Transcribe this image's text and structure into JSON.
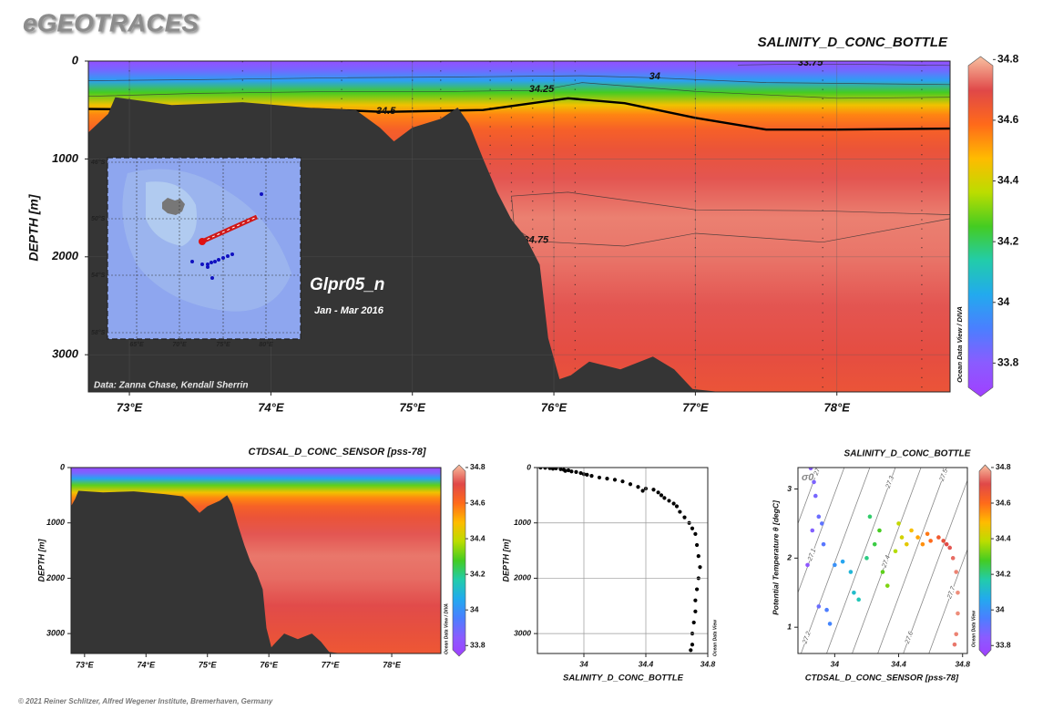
{
  "header": {
    "title": "eGEOTRACES"
  },
  "footer": {
    "copyright": "© 2021 Reiner Schlitzer, Alfred Wegener Institute, Bremerhaven, Germany"
  },
  "chart_data": [
    {
      "type": "section",
      "title": "SALINITY_D_CONC_BOTTLE",
      "y_label": "DEPTH [m]",
      "side_label": "Ocean Data View / DIVA",
      "xlim": [
        72.71,
        78.8
      ],
      "ylim": [
        0,
        3380
      ],
      "y_reversed": true,
      "grid": true,
      "xticks": [
        {
          "value": 73,
          "label": "73°E"
        },
        {
          "value": 74,
          "label": "74°E"
        },
        {
          "value": 75,
          "label": "75°E"
        },
        {
          "value": 76,
          "label": "76°E"
        },
        {
          "value": 77,
          "label": "77°E"
        },
        {
          "value": 78,
          "label": "78°E"
        }
      ],
      "yticks": [
        0,
        1000,
        2000,
        3000
      ],
      "colorbar": {
        "clim": [
          33.69,
          34.81
        ],
        "ticks": [
          33.8,
          34,
          34.2,
          34.4,
          34.6,
          34.8
        ],
        "colormap": [
          "#a040ff",
          "#8a5cff",
          "#4a7fff",
          "#22aaee",
          "#22ccaa",
          "#44cc22",
          "#bbdd00",
          "#ffbb00",
          "#ff6a1a",
          "#e04848",
          "#f8c0a0"
        ]
      },
      "profile": {
        "depth": [
          0,
          100,
          200,
          320,
          450,
          550,
          700,
          900,
          1200,
          1600,
          2000,
          2500,
          3000,
          3380
        ],
        "values": [
          33.75,
          33.85,
          34.0,
          34.25,
          34.45,
          34.55,
          34.62,
          34.66,
          34.71,
          34.75,
          34.74,
          34.71,
          34.68,
          34.66
        ]
      },
      "contours": [
        {
          "level": 33.75,
          "x": [
            77.3,
            77.8,
            78.3,
            78.8
          ],
          "depth": [
            40,
            30,
            35,
            45
          ],
          "bold": false
        },
        {
          "level": 34,
          "x": [
            72.71,
            73.5,
            74.5,
            75.5,
            76.2,
            76.7,
            77.5,
            78.8
          ],
          "depth": [
            200,
            190,
            170,
            160,
            150,
            170,
            220,
            240
          ],
          "bold": false
        },
        {
          "level": 34.25,
          "x": [
            72.71,
            73.5,
            74.5,
            75.3,
            75.9,
            76.2,
            77,
            78,
            78.8
          ],
          "depth": [
            360,
            330,
            310,
            310,
            300,
            220,
            310,
            380,
            370
          ],
          "bold": false
        },
        {
          "level": 34.5,
          "x": [
            72.71,
            73.5,
            74.3,
            74.8,
            75.5,
            75.9,
            76.1,
            76.5,
            77,
            77.5,
            78,
            78.8
          ],
          "depth": [
            490,
            500,
            490,
            520,
            500,
            420,
            380,
            430,
            580,
            700,
            700,
            690
          ],
          "bold": true
        },
        {
          "level": 34.75,
          "x": [
            78.8,
            77.9,
            77,
            76.1,
            75.7,
            75.72,
            75.86,
            76.5,
            77,
            77.9,
            78.8
          ],
          "depth": [
            1570,
            1530,
            1520,
            1340,
            1380,
            1700,
            1840,
            1890,
            1760,
            1850,
            1610
          ],
          "bold": false
        }
      ],
      "stations": [
        73.0,
        73.8,
        74.5,
        75.0,
        75.2,
        75.55,
        75.7,
        75.85,
        76.0,
        76.15,
        77.0,
        77.9,
        78.6
      ],
      "bathymetry": {
        "x": [
          72.71,
          72.85,
          72.9,
          73.3,
          73.8,
          74.3,
          74.6,
          74.77,
          74.87,
          75.0,
          75.2,
          75.32,
          75.4,
          75.5,
          75.6,
          75.7,
          75.8,
          75.9,
          75.96,
          76.04,
          76.12,
          76.25,
          76.47,
          76.7,
          76.85,
          76.98,
          77.17
        ],
        "depth": [
          730,
          540,
          370,
          450,
          420,
          480,
          500,
          680,
          820,
          680,
          590,
          475,
          640,
          1000,
          1340,
          1620,
          1800,
          2080,
          2830,
          3250,
          3210,
          3070,
          3150,
          3020,
          3150,
          3350,
          3380
        ]
      },
      "annotations": {
        "section": "Glpr05_n",
        "period": "Jan - Mar 2016",
        "credit": "Data: Zanna Chase, Kendall Sherrin"
      },
      "inset_map": {
        "lat_labels": [
          "46°S",
          "50°S",
          "54°S",
          "58°S"
        ],
        "lon_labels": [
          "65°E",
          "70°E",
          "75°E",
          "80°E"
        ]
      }
    },
    {
      "type": "section",
      "title": "CTDSAL_D_CONC_SENSOR [pss-78]",
      "y_label": "DEPTH [m]",
      "side_label": "Ocean Data View / DIVA",
      "xlim": [
        72.78,
        78.8
      ],
      "ylim": [
        0,
        3360
      ],
      "y_reversed": true,
      "grid": false,
      "xticks": [
        {
          "value": 73,
          "label": "73°E"
        },
        {
          "value": 74,
          "label": "74°E"
        },
        {
          "value": 75,
          "label": "75°E"
        },
        {
          "value": 76,
          "label": "76°E"
        },
        {
          "value": 77,
          "label": "77°E"
        },
        {
          "value": 78,
          "label": "78°E"
        }
      ],
      "yticks": [
        0,
        1000,
        2000,
        3000
      ],
      "colorbar": {
        "clim": [
          33.74,
          34.815
        ],
        "ticks": [
          33.8,
          34,
          34.2,
          34.4,
          34.6,
          34.8
        ],
        "colormap": [
          "#a040ff",
          "#8a5cff",
          "#4a7fff",
          "#22aaee",
          "#22ccaa",
          "#44cc22",
          "#bbdd00",
          "#ffbb00",
          "#ff6a1a",
          "#e04848",
          "#f8c0a0"
        ]
      },
      "profile": {
        "depth": [
          0,
          100,
          200,
          320,
          450,
          550,
          700,
          900,
          1200,
          1600,
          2000,
          2500,
          3000,
          3360
        ],
        "values": [
          33.78,
          33.88,
          34.05,
          34.3,
          34.47,
          34.56,
          34.63,
          34.67,
          34.72,
          34.75,
          34.74,
          34.71,
          34.68,
          34.66
        ]
      },
      "bathymetry": {
        "x": [
          72.78,
          72.85,
          72.9,
          73.3,
          73.8,
          74.3,
          74.6,
          74.77,
          74.87,
          75.0,
          75.2,
          75.32,
          75.4,
          75.5,
          75.6,
          75.7,
          75.8,
          75.9,
          75.96,
          76.04,
          76.12,
          76.25,
          76.47,
          76.7,
          76.85,
          76.98,
          77.17
        ],
        "depth": [
          700,
          560,
          420,
          450,
          430,
          480,
          520,
          700,
          820,
          700,
          600,
          500,
          660,
          1050,
          1400,
          1700,
          1900,
          2200,
          2900,
          3250,
          3150,
          3000,
          3100,
          3000,
          3150,
          3330,
          3360
        ]
      }
    },
    {
      "type": "scatter",
      "x_label": "SALINITY_D_CONC_BOTTLE",
      "y_label": "DEPTH [m]",
      "side_label": "Ocean Data View",
      "xlim": [
        33.7,
        34.8
      ],
      "ylim": [
        0,
        3360
      ],
      "y_reversed": true,
      "grid": true,
      "color": "#000000",
      "xticks": [
        34,
        34.4,
        34.8
      ],
      "yticks": [
        0,
        1000,
        2000,
        3000
      ],
      "x": [
        33.72,
        33.75,
        33.78,
        33.8,
        33.82,
        33.85,
        33.87,
        33.9,
        33.88,
        33.92,
        33.95,
        33.98,
        34.0,
        34.02,
        34.05,
        34.1,
        34.15,
        34.2,
        34.25,
        34.3,
        34.35,
        34.4,
        34.38,
        34.45,
        34.48,
        34.5,
        34.52,
        34.55,
        34.58,
        34.6,
        34.62,
        34.65,
        34.68,
        34.7,
        34.72,
        34.73,
        34.74,
        34.75,
        34.74,
        34.73,
        34.72,
        34.72,
        34.71,
        34.7,
        34.7,
        34.69
      ],
      "y": [
        0,
        5,
        10,
        20,
        15,
        30,
        40,
        50,
        60,
        70,
        80,
        100,
        120,
        130,
        150,
        180,
        200,
        220,
        250,
        300,
        350,
        380,
        420,
        400,
        450,
        500,
        550,
        600,
        650,
        700,
        800,
        900,
        1000,
        1100,
        1200,
        1400,
        1600,
        1800,
        2000,
        2200,
        2400,
        2600,
        2800,
        3000,
        3200,
        3300
      ]
    },
    {
      "type": "scatter",
      "title": "SALINITY_D_CONC_BOTTLE",
      "x_label": "CTDSAL_D_CONC_SENSOR [pss-78]",
      "y_label": "Potential Temperature θ [degC]",
      "side_label": "Ocean Data View",
      "xlim": [
        33.77,
        34.83
      ],
      "ylim": [
        0.62,
        3.31
      ],
      "y_reversed": false,
      "grid": false,
      "xticks": [
        34,
        34.4,
        34.8
      ],
      "yticks": [
        1,
        2,
        3
      ],
      "colorbar": {
        "clim": [
          33.74,
          34.815
        ],
        "ticks": [
          33.8,
          34,
          34.2,
          34.4,
          34.6,
          34.8
        ],
        "colormap": [
          "#a040ff",
          "#8a5cff",
          "#4a7fff",
          "#22aaee",
          "#22ccaa",
          "#44cc22",
          "#bbdd00",
          "#ffbb00",
          "#ff6a1a",
          "#e04848",
          "#f8c0a0"
        ]
      },
      "isopycnals": {
        "label": "σ0",
        "levels": [
          27,
          27.1,
          27.2,
          27.3,
          27.4,
          27.5,
          27.6,
          27.7
        ]
      },
      "x": [
        33.85,
        33.87,
        33.88,
        33.9,
        33.92,
        33.86,
        33.93,
        33.83,
        33.9,
        33.95,
        33.97,
        34.0,
        34.05,
        34.1,
        34.12,
        34.15,
        34.2,
        34.22,
        34.25,
        34.28,
        34.3,
        34.33,
        34.38,
        34.4,
        34.42,
        34.45,
        34.48,
        34.52,
        34.55,
        34.58,
        34.6,
        34.65,
        34.68,
        34.7,
        34.72,
        34.74,
        34.76,
        34.77,
        34.77,
        34.76,
        34.75
      ],
      "y": [
        3.3,
        3.1,
        2.9,
        2.6,
        2.5,
        2.4,
        2.2,
        1.9,
        1.3,
        1.25,
        1.05,
        1.9,
        1.95,
        1.8,
        1.5,
        1.4,
        2.0,
        2.6,
        2.2,
        2.4,
        1.8,
        1.6,
        2.1,
        2.5,
        2.3,
        2.2,
        2.4,
        2.3,
        2.2,
        2.35,
        2.25,
        2.3,
        2.25,
        2.2,
        2.15,
        2.0,
        1.8,
        1.5,
        1.2,
        0.9,
        0.75
      ]
    }
  ]
}
